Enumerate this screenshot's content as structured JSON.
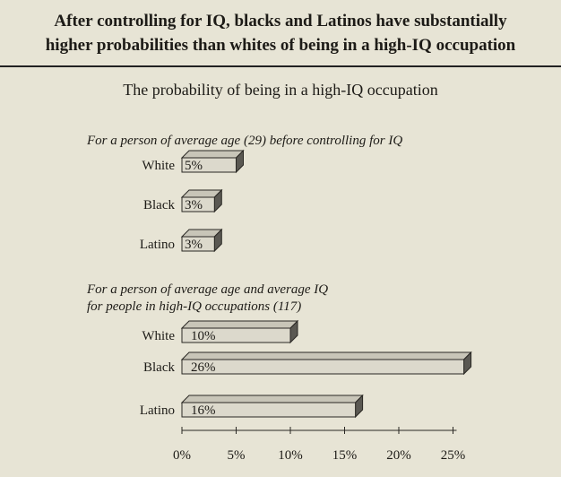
{
  "header": {
    "title_line1": "After controlling for IQ, blacks and Latinos have substantially",
    "title_line2": "higher probabilities than whites of being in a high-IQ occupation",
    "chart_title": "The probability of being in a high-IQ occupation"
  },
  "chart_data": {
    "type": "bar",
    "orientation": "horizontal",
    "title": "The probability of being in a high-IQ occupation",
    "xlim": [
      0,
      25
    ],
    "ticks": [
      "0%",
      "5%",
      "10%",
      "15%",
      "20%",
      "25%"
    ],
    "tick_values": [
      0,
      5,
      10,
      15,
      20,
      25
    ],
    "groups": [
      {
        "label": "For a person of average age (29) before controlling for IQ",
        "label_line1": "For a person of average age (29) before controlling for IQ",
        "label_line2": "",
        "categories": [
          "White",
          "Black",
          "Latino"
        ],
        "values": [
          5,
          3,
          3
        ],
        "value_labels": [
          "5%",
          "3%",
          "3%"
        ]
      },
      {
        "label": "For a person of average age and average IQ for people in high-IQ occupations (117)",
        "label_line1": "For a person of average age and average IQ",
        "label_line2": "for people in high-IQ occupations (117)",
        "categories": [
          "White",
          "Black",
          "Latino"
        ],
        "values": [
          10,
          26,
          16
        ],
        "value_labels": [
          "10%",
          "26%",
          "16%"
        ]
      }
    ],
    "colors": {
      "bar_face": "#dcd9cc",
      "bar_top": "#c8c5b8",
      "bar_side": "#5a5852",
      "outline": "#2a2824"
    }
  }
}
